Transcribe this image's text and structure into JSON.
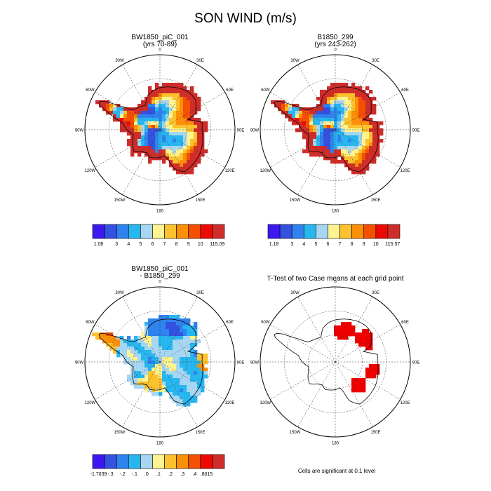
{
  "figure": {
    "title": "SON WIND (m/s)",
    "footnote": "Cells are significant at 0.1 level"
  },
  "longitude_labels": [
    "0",
    "30E",
    "60E",
    "90E",
    "120E",
    "150E",
    "180",
    "150W",
    "120W",
    "90W",
    "60W",
    "30W"
  ],
  "panels": [
    {
      "id": "case1",
      "title_line1": "BW1850_piC_001",
      "title_line2": "(yrs 70-89)",
      "field": "wind"
    },
    {
      "id": "case2",
      "title_line1": "B1850_299",
      "title_line2": "(yrs 243-262)",
      "field": "wind"
    },
    {
      "id": "difference",
      "title_line1": "BW1850_piC_001",
      "title_line2": "- B1850_299",
      "field": "diff"
    },
    {
      "id": "ttest",
      "title_line1": "T-Test of two Case means at each grid point",
      "title_line2": "",
      "field": "signif"
    }
  ],
  "colorbars": [
    {
      "id": "cb-case1",
      "colors": [
        "#3c17f0",
        "#3352e0",
        "#2f83ee",
        "#27b6f0",
        "#a6d6f1",
        "#fdf391",
        "#fbc12e",
        "#fb8f06",
        "#f54f02",
        "#ed0a04",
        "#cf2d2a"
      ],
      "labels": [
        "1.08",
        "3",
        "4",
        "5",
        "6",
        "7",
        "8",
        "9",
        "10",
        "11",
        "15.09"
      ]
    },
    {
      "id": "cb-case2",
      "colors": [
        "#3c17f0",
        "#3352e0",
        "#2f83ee",
        "#27b6f0",
        "#a6d6f1",
        "#fdf391",
        "#fbc12e",
        "#fb8f06",
        "#f54f02",
        "#ed0a04",
        "#cf2d2a"
      ],
      "labels": [
        "1.18",
        "3",
        "4",
        "5",
        "6",
        "7",
        "8",
        "9",
        "10",
        "11",
        "15.57"
      ]
    },
    {
      "id": "cb-diff",
      "colors": [
        "#3c17f0",
        "#3352e0",
        "#2f83ee",
        "#27b6f0",
        "#a6d6f1",
        "#fdf391",
        "#fbc12e",
        "#fb8f06",
        "#f54f02",
        "#ed0a04",
        "#cf2d2a"
      ],
      "labels": [
        "-1.7039",
        "-.3",
        "-.2",
        "-.1",
        ".0",
        ".1",
        ".2",
        ".3",
        ".4",
        ".8015"
      ]
    }
  ],
  "colors": {
    "significant": "#ee0000",
    "coastline": "#000000",
    "grid": "#333333"
  }
}
